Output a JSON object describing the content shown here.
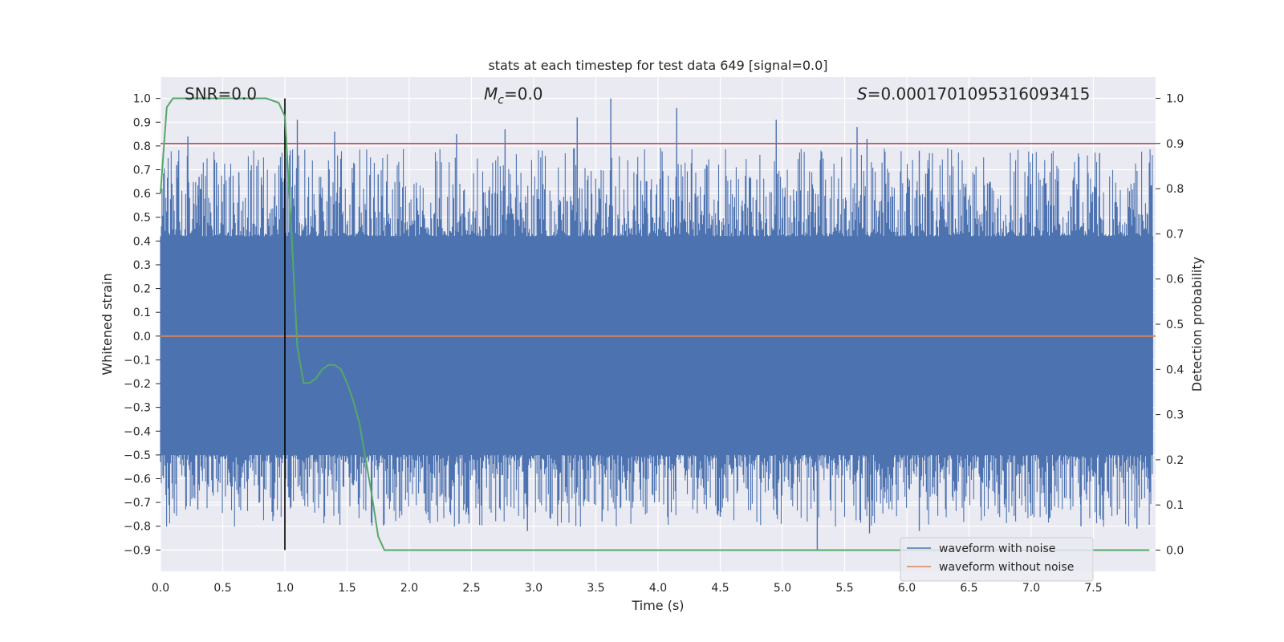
{
  "chart_data": {
    "type": "line",
    "title": "stats at each timestep for test data 649 [signal=0.0]",
    "xlabel": "Time (s)",
    "ylabel": "Whitened strain",
    "y2label": "Detection probability",
    "xlim": [
      0.0,
      8.0
    ],
    "ylim": [
      -0.99,
      1.09
    ],
    "y2lim": [
      -0.047,
      1.047
    ],
    "x_ticks": [
      0.0,
      0.5,
      1.0,
      1.5,
      2.0,
      2.5,
      3.0,
      3.5,
      4.0,
      4.5,
      5.0,
      5.5,
      6.0,
      6.5,
      7.0,
      7.5
    ],
    "x_tick_labels": [
      "0.0",
      "0.5",
      "1.0",
      "1.5",
      "2.0",
      "2.5",
      "3.0",
      "3.5",
      "4.0",
      "4.5",
      "5.0",
      "5.5",
      "6.0",
      "6.5",
      "7.0",
      "7.5"
    ],
    "y_ticks": [
      1.0,
      0.9,
      0.8,
      0.7,
      0.6,
      0.5,
      0.4,
      0.3,
      0.2,
      0.1,
      0.0,
      -0.1,
      -0.2,
      -0.3,
      -0.4,
      -0.5,
      -0.6,
      -0.7,
      -0.8,
      -0.9
    ],
    "y_tick_labels": [
      "1.0",
      "0.9",
      "0.8",
      "0.7",
      "0.6",
      "0.5",
      "0.4",
      "0.3",
      "0.2",
      "0.1",
      "0.0",
      "−0.1",
      "−0.2",
      "−0.3",
      "−0.4",
      "−0.5",
      "−0.6",
      "−0.7",
      "−0.8",
      "−0.9"
    ],
    "y2_ticks": [
      1.0,
      0.9,
      0.8,
      0.7,
      0.6,
      0.5,
      0.4,
      0.3,
      0.2,
      0.1,
      0.0
    ],
    "y2_tick_labels": [
      "1.0",
      "0.9",
      "0.8",
      "0.7",
      "0.6",
      "0.5",
      "0.4",
      "0.3",
      "0.2",
      "0.1",
      "0.0"
    ],
    "grid": true,
    "legend_position": "bottom-right",
    "annotations": {
      "snr": "SNR=0.0",
      "mc": "M_c=0.0",
      "mc_main": "M",
      "mc_sub": "c",
      "mc_value": "=0.0",
      "s_symbol": "S",
      "s_value": "=0.0001701095316093415"
    },
    "threshold_line": {
      "y2": 0.9,
      "color": "#c44e52"
    },
    "marker_line": {
      "x": 1.0,
      "color": "#000000"
    },
    "series": [
      {
        "name": "waveform with noise",
        "color": "#4c72b0",
        "axis": "left",
        "band_low": -0.5,
        "band_high": 0.42,
        "spikes": [
          {
            "x": 0.22,
            "y": 0.84
          },
          {
            "x": 0.13,
            "y": 0.72
          },
          {
            "x": 0.31,
            "y": 0.67
          },
          {
            "x": 0.45,
            "y": 0.73
          },
          {
            "x": 0.63,
            "y": 0.69
          },
          {
            "x": 1.1,
            "y": 0.91
          },
          {
            "x": 1.4,
            "y": 0.86
          },
          {
            "x": 1.75,
            "y": 0.68
          },
          {
            "x": 2.38,
            "y": 0.85
          },
          {
            "x": 2.77,
            "y": 0.87
          },
          {
            "x": 3.35,
            "y": 0.92
          },
          {
            "x": 3.62,
            "y": 1.0
          },
          {
            "x": 4.15,
            "y": 0.96
          },
          {
            "x": 4.95,
            "y": 0.91
          },
          {
            "x": 5.6,
            "y": 0.88
          },
          {
            "x": 5.68,
            "y": 0.83
          },
          {
            "x": 6.1,
            "y": 0.78
          },
          {
            "x": 7.55,
            "y": 0.77
          },
          {
            "x": 7.95,
            "y": 0.73
          },
          {
            "x": 0.3,
            "y": -0.73
          },
          {
            "x": 1.05,
            "y": -0.64
          },
          {
            "x": 1.6,
            "y": -0.68
          },
          {
            "x": 2.15,
            "y": -0.74
          },
          {
            "x": 2.4,
            "y": -0.79
          },
          {
            "x": 2.95,
            "y": -0.82
          },
          {
            "x": 3.55,
            "y": -0.78
          },
          {
            "x": 4.5,
            "y": -0.76
          },
          {
            "x": 5.28,
            "y": -0.9
          },
          {
            "x": 5.7,
            "y": -0.83
          },
          {
            "x": 6.1,
            "y": -0.82
          },
          {
            "x": 7.4,
            "y": -0.8
          },
          {
            "x": 7.85,
            "y": -0.81
          }
        ]
      },
      {
        "name": "waveform without noise",
        "color": "#dd8452",
        "axis": "left",
        "x": [
          0.0,
          8.0
        ],
        "y": [
          0.0,
          0.0
        ]
      },
      {
        "name": "detection probability",
        "color": "#55a868",
        "axis": "right",
        "x": [
          0.0,
          0.05,
          0.1,
          0.2,
          0.3,
          0.5,
          0.7,
          0.85,
          0.95,
          1.0,
          1.05,
          1.1,
          1.15,
          1.2,
          1.25,
          1.3,
          1.35,
          1.4,
          1.45,
          1.5,
          1.55,
          1.6,
          1.65,
          1.7,
          1.75,
          1.8,
          1.9,
          2.5,
          4.0,
          5.0,
          5.8,
          6.5,
          7.0,
          7.5,
          7.95
        ],
        "y": [
          0.79,
          0.98,
          1.0,
          1.0,
          1.0,
          1.0,
          1.0,
          1.0,
          0.99,
          0.96,
          0.72,
          0.45,
          0.37,
          0.37,
          0.38,
          0.4,
          0.41,
          0.41,
          0.4,
          0.37,
          0.33,
          0.28,
          0.2,
          0.12,
          0.03,
          0.0,
          0.0,
          0.0,
          0.0,
          0.0,
          0.0,
          0.0,
          0.0,
          0.0,
          0.0
        ]
      }
    ]
  }
}
